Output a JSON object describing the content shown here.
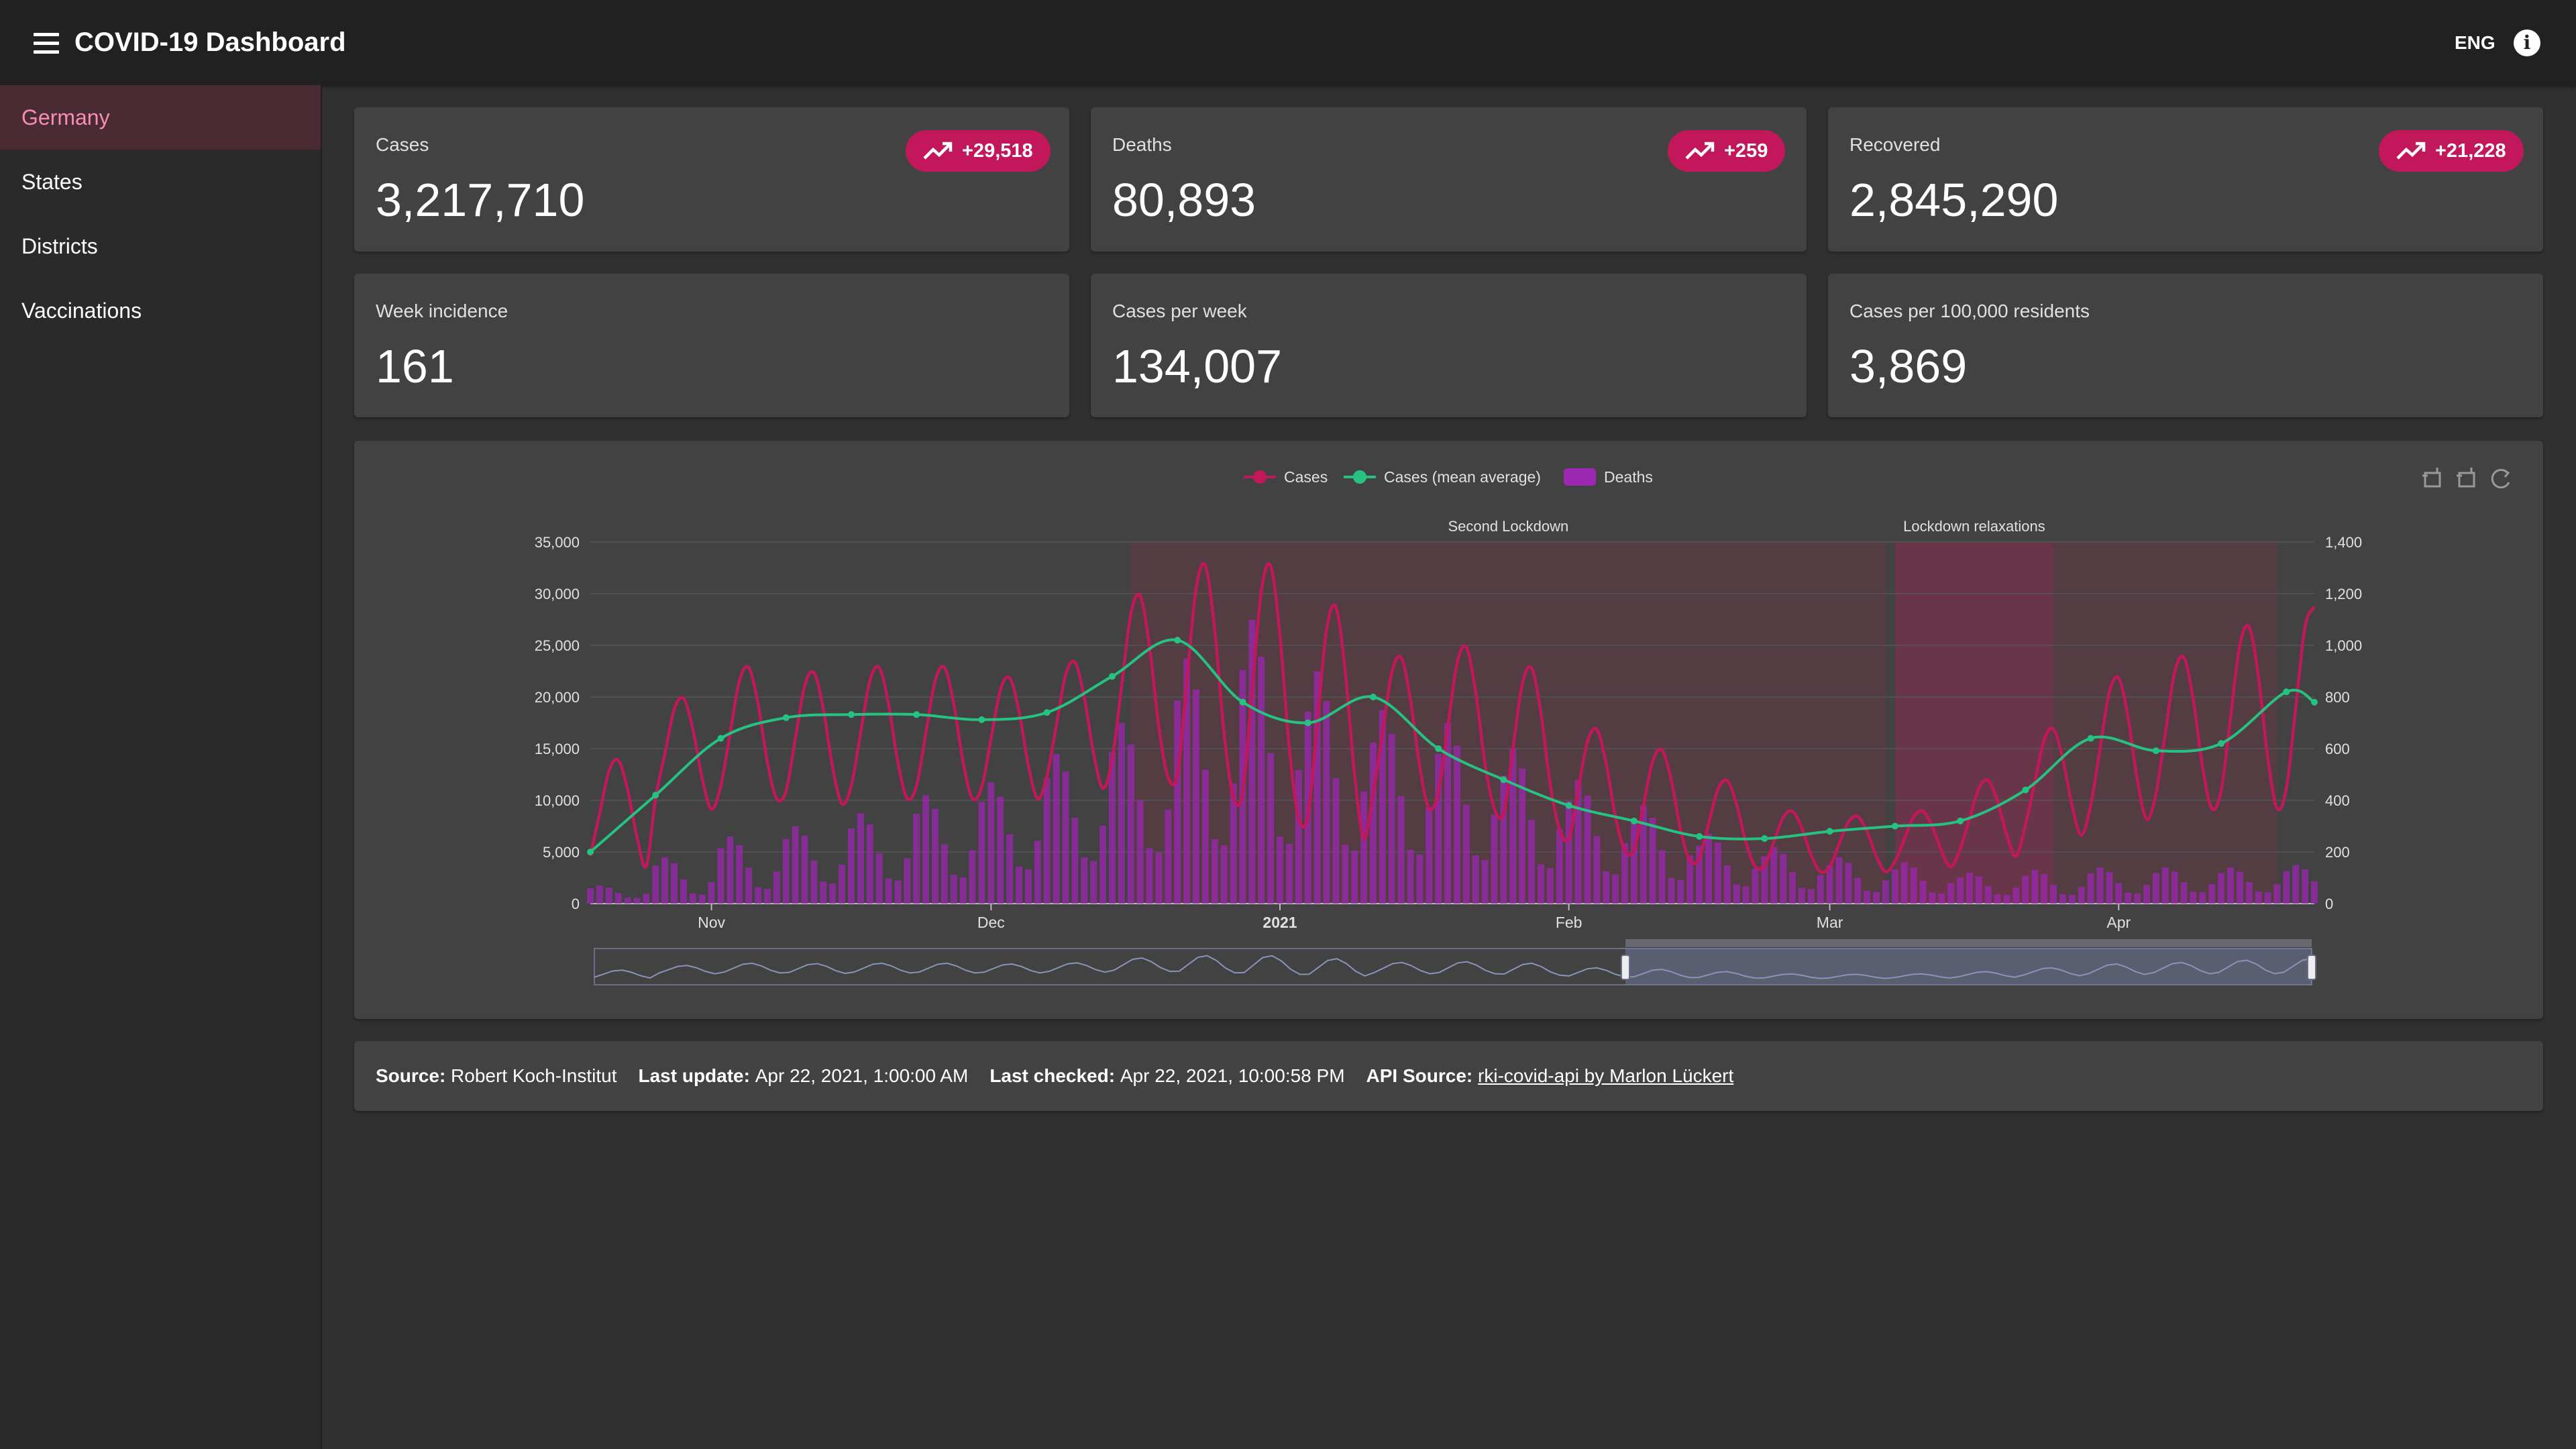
{
  "app": {
    "title": "COVID-19 Dashboard",
    "language": "ENG"
  },
  "sidebar": {
    "items": [
      {
        "label": "Germany",
        "active": true
      },
      {
        "label": "States"
      },
      {
        "label": "Districts"
      },
      {
        "label": "Vaccinations"
      }
    ]
  },
  "stats": [
    {
      "label": "Cases",
      "value": "3,217,710",
      "delta": "+29,518"
    },
    {
      "label": "Deaths",
      "value": "80,893",
      "delta": "+259"
    },
    {
      "label": "Recovered",
      "value": "2,845,290",
      "delta": "+21,228"
    },
    {
      "label": "Week incidence",
      "value": "161"
    },
    {
      "label": "Cases per week",
      "value": "134,007"
    },
    {
      "label": "Cases per 100,000 residents",
      "value": "3,869"
    }
  ],
  "colors": {
    "accent": "#c2185b",
    "cases": "#c2185b",
    "mean": "#26c281",
    "deaths": "#9c27b0"
  },
  "toolbox": {
    "icons": [
      "zoom-icon",
      "zoom-reset-icon",
      "restore-icon"
    ]
  },
  "footer": {
    "source_label": "Source",
    "source_value": "Robert Koch-Institut",
    "update_label": "Last update",
    "update_value": "Apr 22, 2021, 1:00:00 AM",
    "checked_label": "Last checked",
    "checked_value": "Apr 22, 2021, 10:00:58 PM",
    "api_label": "API Source",
    "api_value": "rki-covid-api by Marlon Lückert"
  },
  "chart_data": {
    "type": "line",
    "legend": [
      "Cases",
      "Cases (mean average)",
      "Deaths"
    ],
    "legend_position": "top-center",
    "x_start": "2020-10-19",
    "x_end": "2021-04-22",
    "x_ticks": [
      "Nov",
      "Dec",
      "2021",
      "Feb",
      "Mar",
      "Apr"
    ],
    "y_left": {
      "min": 0,
      "max": 35000,
      "ticks": [
        "0",
        "5,000",
        "10,000",
        "15,000",
        "20,000",
        "25,000",
        "30,000",
        "35,000"
      ]
    },
    "y_right": {
      "min": 0,
      "max": 1400,
      "ticks": [
        "0",
        "200",
        "400",
        "600",
        "800",
        "1,000",
        "1,200",
        "1,400"
      ]
    },
    "grid": true,
    "mark_areas": [
      {
        "label": "Second Lockdown",
        "from": "2020-12-16",
        "to": "2021-03-07"
      },
      {
        "label": "Lockdown relaxations",
        "from": "2021-03-08",
        "to": "2021-03-25"
      },
      {
        "label": "",
        "from": "2021-03-25",
        "to": "2021-04-18"
      }
    ],
    "series": [
      {
        "name": "Cases",
        "axis": "left",
        "style": "line",
        "period": 7,
        "weekly_peaks": [
          14000,
          20000,
          23000,
          22500,
          23000,
          23000,
          22000,
          23500,
          30000,
          33000,
          33000,
          29000,
          24000,
          25000,
          23000,
          17000,
          15000,
          12000,
          9000,
          8500,
          9000,
          12000,
          17000,
          22000,
          24000,
          27000,
          29000,
          27000
        ],
        "weekly_troughs": [
          3500,
          9000,
          10000,
          9500,
          10000,
          10000,
          10000,
          11000,
          12000,
          10000,
          8000,
          6000,
          9000,
          9000,
          7000,
          5000,
          4000,
          3500,
          3000,
          3000,
          3500,
          4500,
          6500,
          8000,
          9000,
          9000,
          9000,
          9000
        ]
      },
      {
        "name": "Cases (mean average)",
        "axis": "left",
        "style": "smooth-line",
        "x_days": [
          0,
          7,
          14,
          21,
          28,
          35,
          42,
          49,
          56,
          63,
          70,
          77,
          84,
          91,
          98,
          105,
          112,
          119,
          126,
          133,
          140,
          147,
          154,
          161,
          168,
          175,
          182,
          185
        ],
        "values": [
          5000,
          10500,
          16000,
          18000,
          18300,
          18300,
          17800,
          18500,
          22000,
          25500,
          19500,
          17500,
          20000,
          15000,
          12000,
          9500,
          8000,
          6500,
          6300,
          7000,
          7500,
          8000,
          11000,
          16000,
          14800,
          15500,
          20500,
          19500
        ]
      },
      {
        "name": "Deaths",
        "axis": "right",
        "style": "bar",
        "period": 7,
        "weekly_peaks": [
          70,
          180,
          260,
          300,
          350,
          420,
          470,
          580,
          700,
          950,
          1100,
          900,
          750,
          700,
          600,
          480,
          380,
          270,
          220,
          180,
          160,
          120,
          130,
          140,
          140,
          140,
          150,
          120
        ],
        "weekly_lows": [
          20,
          30,
          50,
          70,
          80,
          90,
          120,
          150,
          180,
          200,
          200,
          180,
          170,
          150,
          120,
          100,
          80,
          60,
          50,
          40,
          35,
          30,
          30,
          35,
          40,
          40,
          40,
          20
        ]
      }
    ]
  }
}
